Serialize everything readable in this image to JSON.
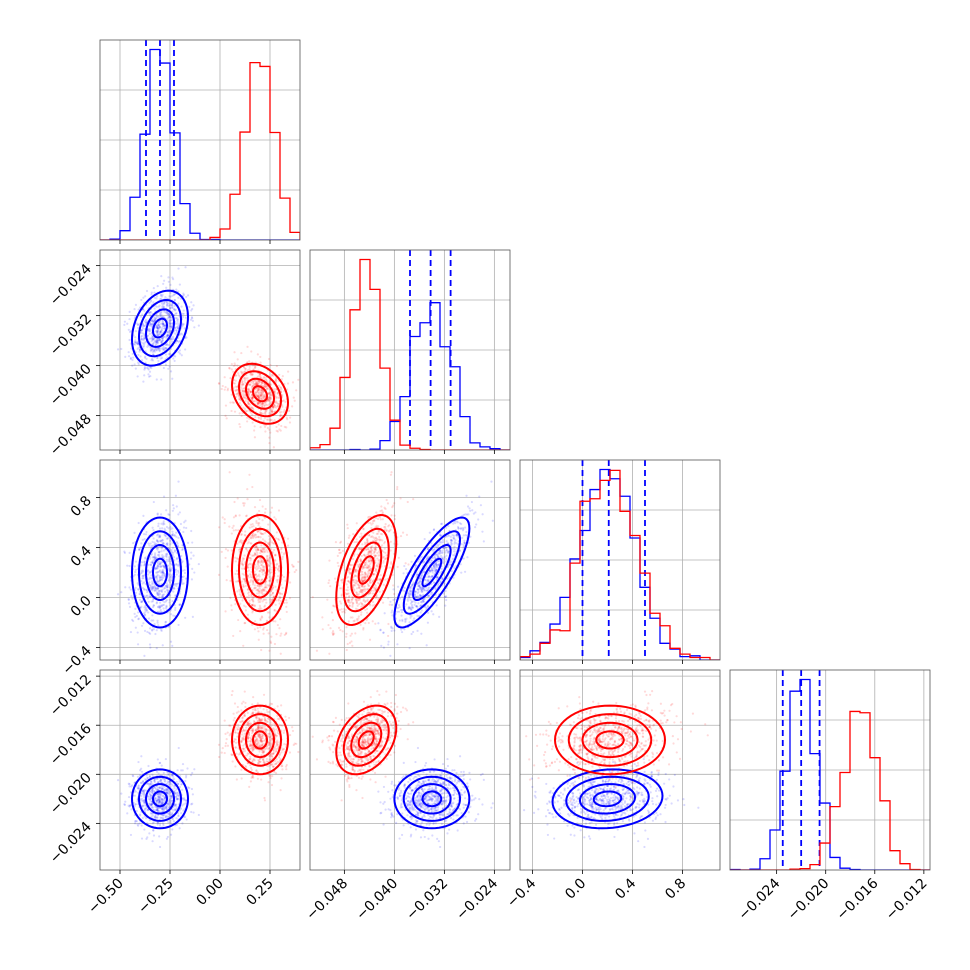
{
  "chart_data": {
    "type": "corner",
    "colors": {
      "series_a": "#0000ff",
      "series_b": "#ff0000"
    },
    "grid": true,
    "parameters": [
      {
        "id": "p1",
        "range": [
          -0.6,
          0.4
        ],
        "ticks": [
          -0.5,
          -0.25,
          0.0,
          0.25
        ],
        "tick_labels": [
          "−0.50",
          "−0.25",
          "0.00",
          "0.25"
        ]
      },
      {
        "id": "p2",
        "range": [
          -0.0535,
          -0.0215
        ],
        "ticks": [
          -0.048,
          -0.04,
          -0.032,
          -0.024
        ],
        "tick_labels": [
          "−0.048",
          "−0.040",
          "−0.032",
          "−0.024"
        ]
      },
      {
        "id": "p3",
        "range": [
          -0.5,
          1.1
        ],
        "ticks": [
          -0.4,
          0.0,
          0.4,
          0.8
        ],
        "tick_labels": [
          "−0.4",
          "0.0",
          "0.4",
          "0.8"
        ]
      },
      {
        "id": "p4",
        "range": [
          -0.0278,
          -0.0115
        ],
        "ticks": [
          -0.024,
          -0.02,
          -0.016,
          -0.012
        ],
        "tick_labels": [
          "−0.024",
          "−0.020",
          "−0.016",
          "−0.012"
        ]
      }
    ],
    "series": [
      {
        "key": "series_a",
        "means": [
          -0.3,
          -0.034,
          0.2,
          -0.022
        ],
        "sds": [
          0.07,
          0.003,
          0.22,
          0.0012
        ],
        "corr": [
          [
            0,
            1,
            0.3
          ],
          [
            1,
            2,
            0.8
          ],
          [
            1,
            3,
            0.0
          ],
          [
            0,
            2,
            0.0
          ],
          [
            0,
            3,
            0.0
          ],
          [
            2,
            3,
            0.1
          ]
        ],
        "quantiles": [
          [
            -0.37,
            -0.3,
            -0.23
          ],
          [
            -0.0375,
            -0.0342,
            -0.031
          ],
          [
            0.0,
            0.21,
            0.5
          ],
          [
            -0.0235,
            -0.022,
            -0.0205
          ]
        ]
      },
      {
        "key": "series_b",
        "means": [
          0.2,
          -0.0445,
          0.22,
          -0.0172
        ],
        "sds": [
          0.07,
          0.0024,
          0.22,
          0.0014
        ],
        "corr": [
          [
            0,
            1,
            -0.3
          ],
          [
            1,
            2,
            0.5
          ],
          [
            1,
            3,
            0.35
          ],
          [
            0,
            2,
            0.0
          ],
          [
            0,
            3,
            0.0
          ],
          [
            2,
            3,
            0.0
          ]
        ],
        "quantiles": []
      }
    ]
  }
}
